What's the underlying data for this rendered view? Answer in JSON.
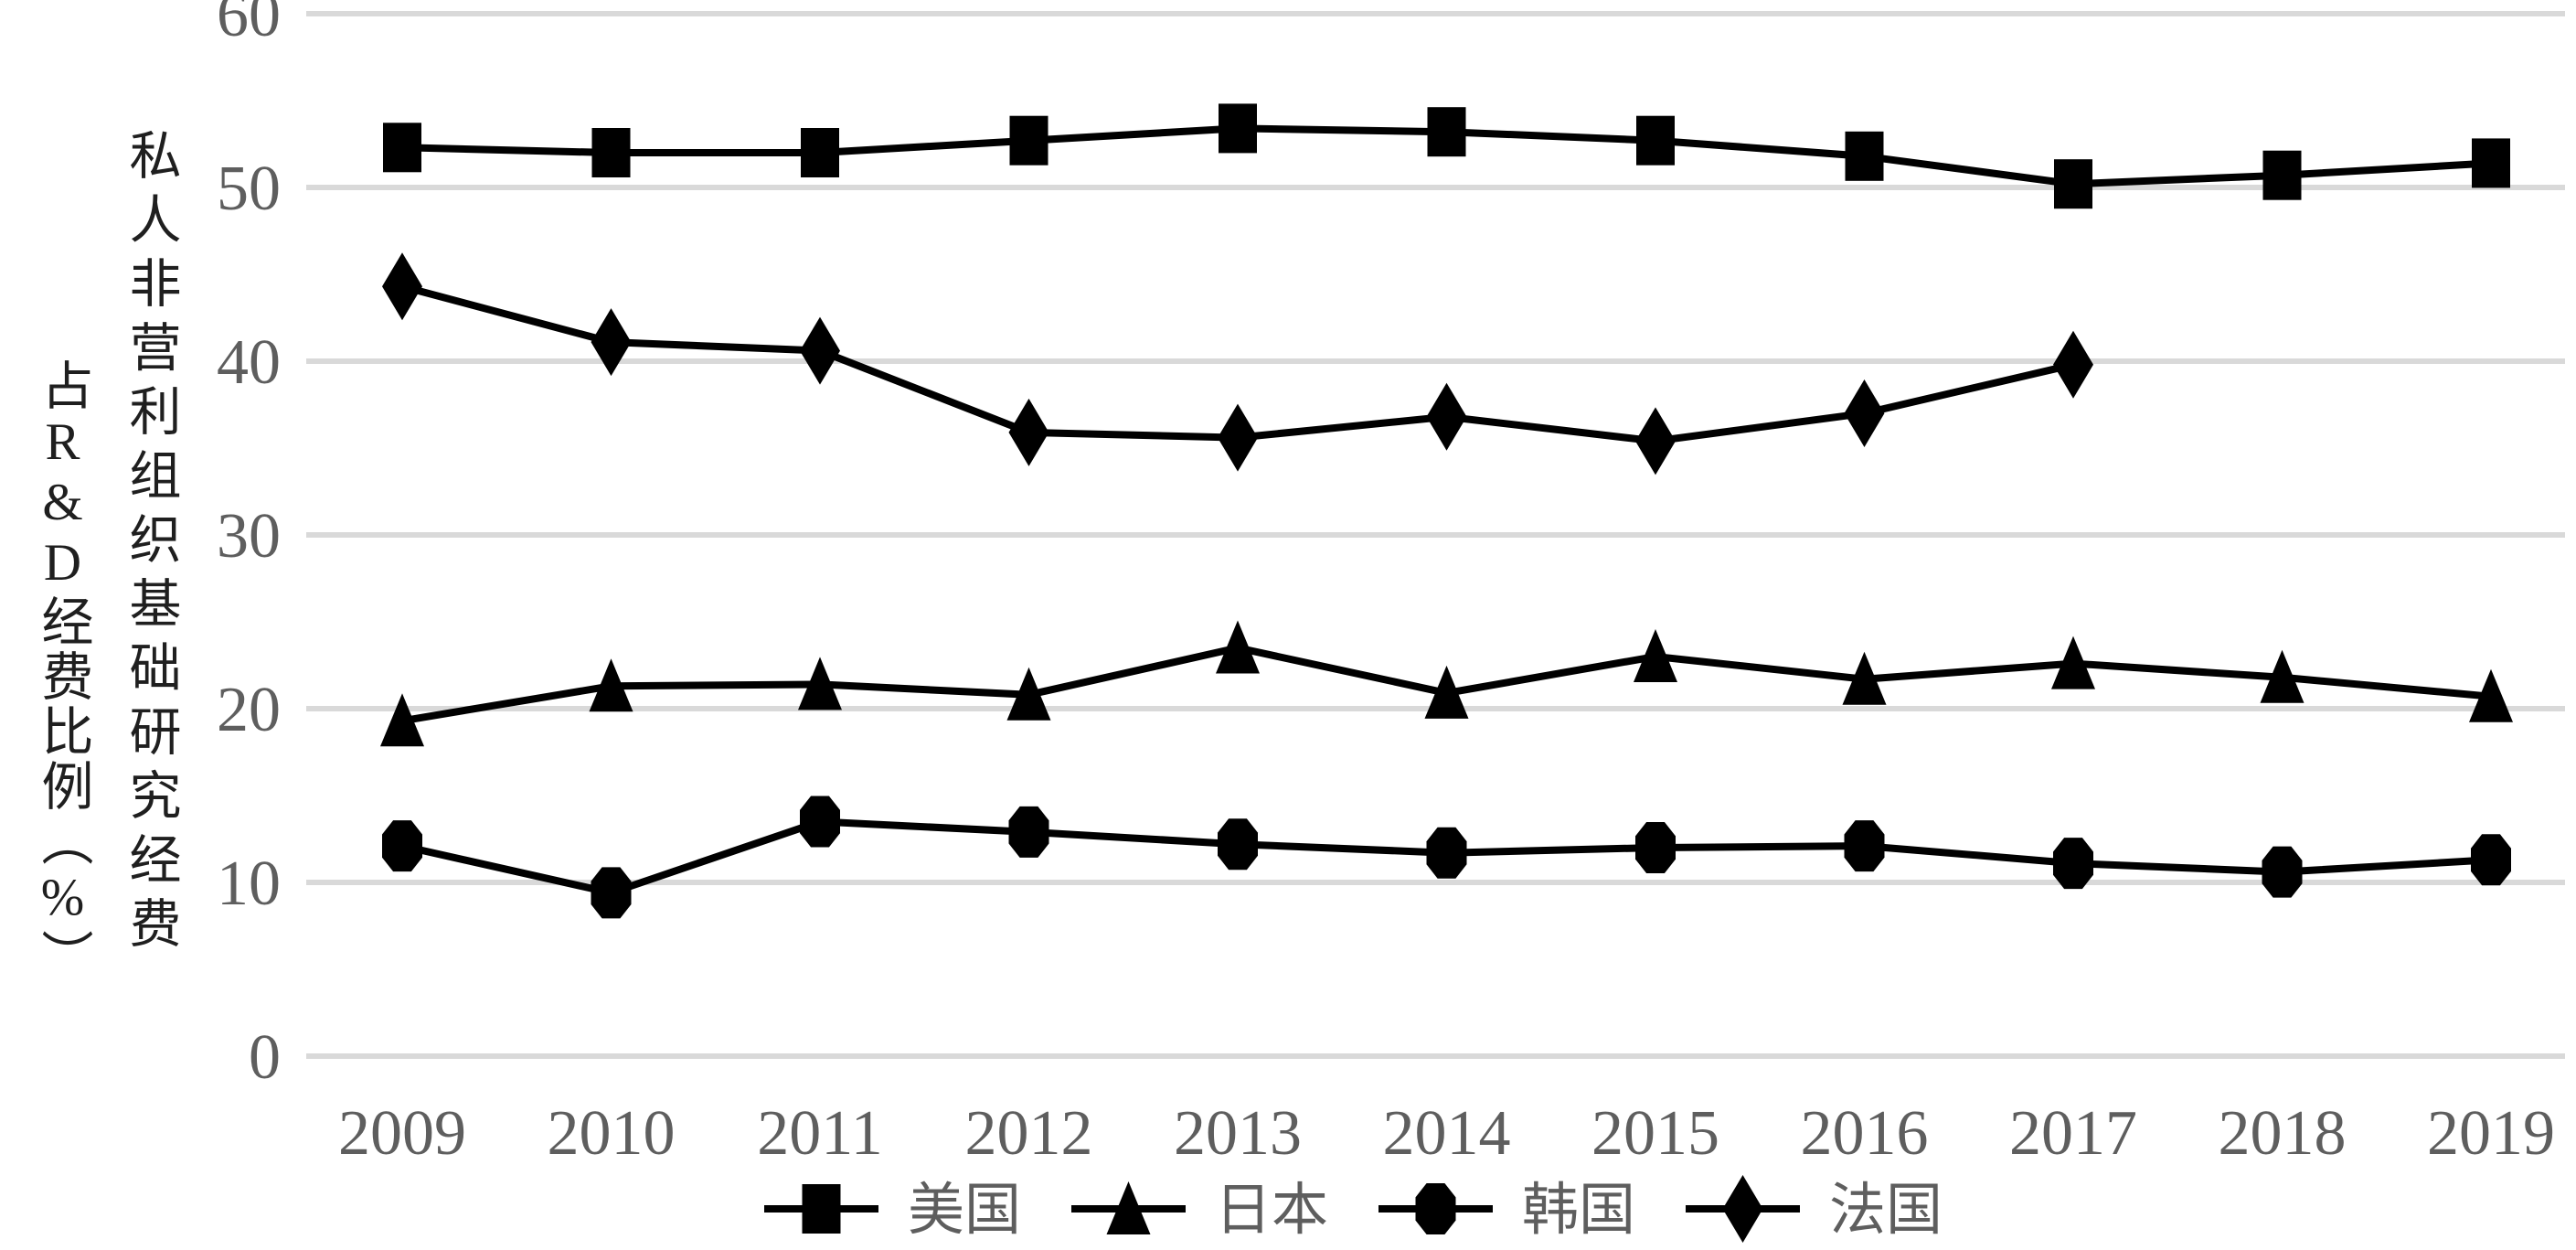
{
  "chart_data": {
    "type": "line",
    "title": "",
    "ylabel_full": "私人非营利组织基础研究经费占R&D经费比例（%）",
    "ylabel_col_main": "私人非营利组织基础研究经费",
    "ylabel_col_sub": "占R&D经费比例（%）",
    "x_categories": [
      "2009",
      "2010",
      "2011",
      "2012",
      "2013",
      "2014",
      "2015",
      "2016",
      "2017",
      "2018",
      "2019"
    ],
    "series": [
      {
        "name": "美国",
        "slug": "usa",
        "marker": "square",
        "values": [
          52.3,
          52.0,
          52.0,
          52.7,
          53.4,
          53.2,
          52.7,
          51.8,
          50.2,
          50.7,
          51.4
        ]
      },
      {
        "name": "日本",
        "slug": "japan",
        "marker": "triangle",
        "values": [
          19.3,
          21.3,
          21.4,
          20.8,
          23.5,
          20.9,
          23.0,
          21.7,
          22.6,
          21.8,
          20.7
        ]
      },
      {
        "name": "韩国",
        "slug": "korea",
        "marker": "octagon",
        "values": [
          12.1,
          9.4,
          13.5,
          12.9,
          12.2,
          11.7,
          12.0,
          12.1,
          11.1,
          10.6,
          11.3
        ]
      },
      {
        "name": "法国",
        "slug": "france",
        "marker": "diamond",
        "values": [
          44.3,
          41.1,
          40.6,
          35.9,
          35.6,
          36.8,
          35.4,
          37.0,
          39.8,
          null,
          null
        ]
      }
    ],
    "ylim": [
      0,
      60
    ],
    "yticks": [
      0,
      10,
      20,
      30,
      40,
      50,
      60
    ],
    "grid": "horizontal",
    "legend_position": "bottom",
    "legend_labels": [
      "美国",
      "日本",
      "韩国",
      "法国"
    ],
    "colors": {
      "series_line": "#000000",
      "marker_fill": "#000000",
      "tick_label": "#5e5e5e",
      "legend_label": "#5e5e5e",
      "axis_title": "#1f1f1f",
      "gridline": "#d9d9d9",
      "background": "#ffffff"
    }
  }
}
